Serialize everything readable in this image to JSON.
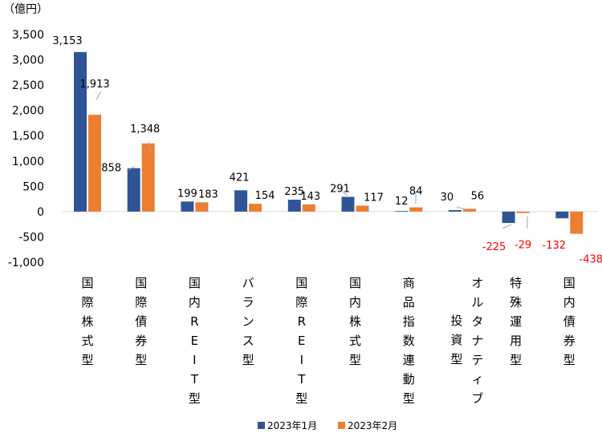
{
  "chart_data": {
    "type": "bar",
    "unit_label": "（億円）",
    "ylim": [
      -1000,
      3500
    ],
    "yticks": [
      -1000,
      -500,
      0,
      500,
      1000,
      1500,
      2000,
      2500,
      3000,
      3500
    ],
    "ytick_labels": [
      "-1,000",
      "-500",
      "0",
      "500",
      "1,000",
      "1,500",
      "2,000",
      "2,500",
      "3,000",
      "3,500"
    ],
    "categories": [
      {
        "label": "国際株式型",
        "lines": [
          [
            "国",
            "際",
            "株",
            "式",
            "型"
          ]
        ]
      },
      {
        "label": "国際債券型",
        "lines": [
          [
            "国",
            "際",
            "債",
            "券",
            "型"
          ]
        ]
      },
      {
        "label": "国内REIT型",
        "lines": [
          [
            "国",
            "内",
            "R",
            "E",
            "I",
            "T",
            "型"
          ]
        ]
      },
      {
        "label": "バランス型",
        "lines": [
          [
            "バ",
            "ラ",
            "ン",
            "ス",
            "型"
          ]
        ]
      },
      {
        "label": "国際REIT型",
        "lines": [
          [
            "国",
            "際",
            "R",
            "E",
            "I",
            "T",
            "型"
          ]
        ]
      },
      {
        "label": "国内株式型",
        "lines": [
          [
            "国",
            "内",
            "株",
            "式",
            "型"
          ]
        ]
      },
      {
        "label": "商品指数連動型",
        "lines": [
          [
            "商",
            "品",
            "指",
            "数",
            "連",
            "動",
            "型"
          ]
        ]
      },
      {
        "label": "オルタナティブ投資型",
        "lines": [
          [
            "オ",
            "ル",
            "タ",
            "ナ",
            "テ",
            "ィ",
            "ブ"
          ],
          [
            "投",
            "資",
            "型"
          ]
        ]
      },
      {
        "label": "特殊運用型",
        "lines": [
          [
            "特",
            "殊",
            "運",
            "用",
            "型"
          ]
        ]
      },
      {
        "label": "国内債券型",
        "lines": [
          [
            "国",
            "内",
            "債",
            "券",
            "型"
          ]
        ]
      }
    ],
    "series": [
      {
        "name": "2023年1月",
        "color": "#2f5597",
        "values": [
          3153,
          858,
          199,
          421,
          235,
          291,
          12,
          30,
          -225,
          -132
        ],
        "labels": [
          "3,153",
          "858",
          "199",
          "421",
          "235",
          "291",
          "12",
          "30",
          "-225",
          "-132"
        ]
      },
      {
        "name": "2023年2月",
        "color": "#ed7d31",
        "values": [
          1913,
          1348,
          183,
          154,
          143,
          117,
          84,
          56,
          -29,
          -438
        ],
        "labels": [
          "1,913",
          "1,348",
          "183",
          "154",
          "143",
          "117",
          "84",
          "56",
          "-29",
          "-438"
        ]
      }
    ],
    "negative_label_color": "#ff0000",
    "positive_label_color": "#000000",
    "legend_position": "bottom"
  }
}
